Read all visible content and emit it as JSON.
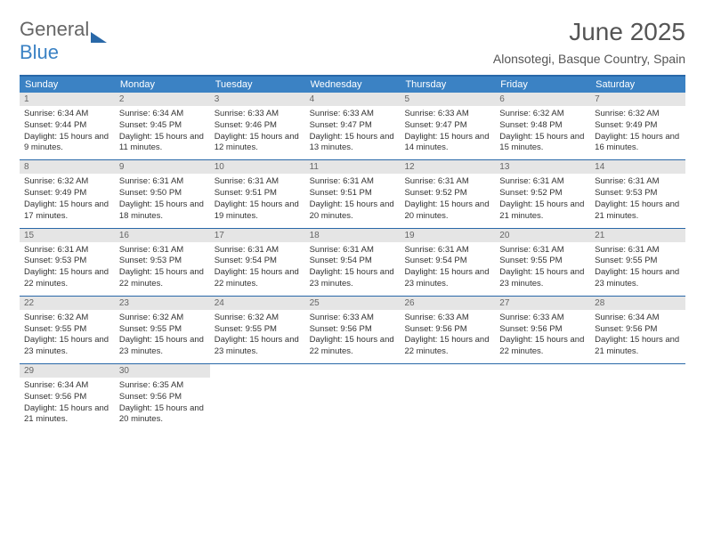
{
  "logo": {
    "general": "General",
    "blue": "Blue"
  },
  "title": "June 2025",
  "location": "Alonsotegi, Basque Country, Spain",
  "colors": {
    "header_bar": "#3b82c4",
    "border": "#2968a8",
    "daynum_bg": "#e5e5e5",
    "text": "#333333",
    "muted": "#666666"
  },
  "days_of_week": [
    "Sunday",
    "Monday",
    "Tuesday",
    "Wednesday",
    "Thursday",
    "Friday",
    "Saturday"
  ],
  "weeks": [
    [
      {
        "n": "1",
        "sr": "Sunrise: 6:34 AM",
        "ss": "Sunset: 9:44 PM",
        "dl": "Daylight: 15 hours and 9 minutes."
      },
      {
        "n": "2",
        "sr": "Sunrise: 6:34 AM",
        "ss": "Sunset: 9:45 PM",
        "dl": "Daylight: 15 hours and 11 minutes."
      },
      {
        "n": "3",
        "sr": "Sunrise: 6:33 AM",
        "ss": "Sunset: 9:46 PM",
        "dl": "Daylight: 15 hours and 12 minutes."
      },
      {
        "n": "4",
        "sr": "Sunrise: 6:33 AM",
        "ss": "Sunset: 9:47 PM",
        "dl": "Daylight: 15 hours and 13 minutes."
      },
      {
        "n": "5",
        "sr": "Sunrise: 6:33 AM",
        "ss": "Sunset: 9:47 PM",
        "dl": "Daylight: 15 hours and 14 minutes."
      },
      {
        "n": "6",
        "sr": "Sunrise: 6:32 AM",
        "ss": "Sunset: 9:48 PM",
        "dl": "Daylight: 15 hours and 15 minutes."
      },
      {
        "n": "7",
        "sr": "Sunrise: 6:32 AM",
        "ss": "Sunset: 9:49 PM",
        "dl": "Daylight: 15 hours and 16 minutes."
      }
    ],
    [
      {
        "n": "8",
        "sr": "Sunrise: 6:32 AM",
        "ss": "Sunset: 9:49 PM",
        "dl": "Daylight: 15 hours and 17 minutes."
      },
      {
        "n": "9",
        "sr": "Sunrise: 6:31 AM",
        "ss": "Sunset: 9:50 PM",
        "dl": "Daylight: 15 hours and 18 minutes."
      },
      {
        "n": "10",
        "sr": "Sunrise: 6:31 AM",
        "ss": "Sunset: 9:51 PM",
        "dl": "Daylight: 15 hours and 19 minutes."
      },
      {
        "n": "11",
        "sr": "Sunrise: 6:31 AM",
        "ss": "Sunset: 9:51 PM",
        "dl": "Daylight: 15 hours and 20 minutes."
      },
      {
        "n": "12",
        "sr": "Sunrise: 6:31 AM",
        "ss": "Sunset: 9:52 PM",
        "dl": "Daylight: 15 hours and 20 minutes."
      },
      {
        "n": "13",
        "sr": "Sunrise: 6:31 AM",
        "ss": "Sunset: 9:52 PM",
        "dl": "Daylight: 15 hours and 21 minutes."
      },
      {
        "n": "14",
        "sr": "Sunrise: 6:31 AM",
        "ss": "Sunset: 9:53 PM",
        "dl": "Daylight: 15 hours and 21 minutes."
      }
    ],
    [
      {
        "n": "15",
        "sr": "Sunrise: 6:31 AM",
        "ss": "Sunset: 9:53 PM",
        "dl": "Daylight: 15 hours and 22 minutes."
      },
      {
        "n": "16",
        "sr": "Sunrise: 6:31 AM",
        "ss": "Sunset: 9:53 PM",
        "dl": "Daylight: 15 hours and 22 minutes."
      },
      {
        "n": "17",
        "sr": "Sunrise: 6:31 AM",
        "ss": "Sunset: 9:54 PM",
        "dl": "Daylight: 15 hours and 22 minutes."
      },
      {
        "n": "18",
        "sr": "Sunrise: 6:31 AM",
        "ss": "Sunset: 9:54 PM",
        "dl": "Daylight: 15 hours and 23 minutes."
      },
      {
        "n": "19",
        "sr": "Sunrise: 6:31 AM",
        "ss": "Sunset: 9:54 PM",
        "dl": "Daylight: 15 hours and 23 minutes."
      },
      {
        "n": "20",
        "sr": "Sunrise: 6:31 AM",
        "ss": "Sunset: 9:55 PM",
        "dl": "Daylight: 15 hours and 23 minutes."
      },
      {
        "n": "21",
        "sr": "Sunrise: 6:31 AM",
        "ss": "Sunset: 9:55 PM",
        "dl": "Daylight: 15 hours and 23 minutes."
      }
    ],
    [
      {
        "n": "22",
        "sr": "Sunrise: 6:32 AM",
        "ss": "Sunset: 9:55 PM",
        "dl": "Daylight: 15 hours and 23 minutes."
      },
      {
        "n": "23",
        "sr": "Sunrise: 6:32 AM",
        "ss": "Sunset: 9:55 PM",
        "dl": "Daylight: 15 hours and 23 minutes."
      },
      {
        "n": "24",
        "sr": "Sunrise: 6:32 AM",
        "ss": "Sunset: 9:55 PM",
        "dl": "Daylight: 15 hours and 23 minutes."
      },
      {
        "n": "25",
        "sr": "Sunrise: 6:33 AM",
        "ss": "Sunset: 9:56 PM",
        "dl": "Daylight: 15 hours and 22 minutes."
      },
      {
        "n": "26",
        "sr": "Sunrise: 6:33 AM",
        "ss": "Sunset: 9:56 PM",
        "dl": "Daylight: 15 hours and 22 minutes."
      },
      {
        "n": "27",
        "sr": "Sunrise: 6:33 AM",
        "ss": "Sunset: 9:56 PM",
        "dl": "Daylight: 15 hours and 22 minutes."
      },
      {
        "n": "28",
        "sr": "Sunrise: 6:34 AM",
        "ss": "Sunset: 9:56 PM",
        "dl": "Daylight: 15 hours and 21 minutes."
      }
    ],
    [
      {
        "n": "29",
        "sr": "Sunrise: 6:34 AM",
        "ss": "Sunset: 9:56 PM",
        "dl": "Daylight: 15 hours and 21 minutes."
      },
      {
        "n": "30",
        "sr": "Sunrise: 6:35 AM",
        "ss": "Sunset: 9:56 PM",
        "dl": "Daylight: 15 hours and 20 minutes."
      },
      null,
      null,
      null,
      null,
      null
    ]
  ]
}
